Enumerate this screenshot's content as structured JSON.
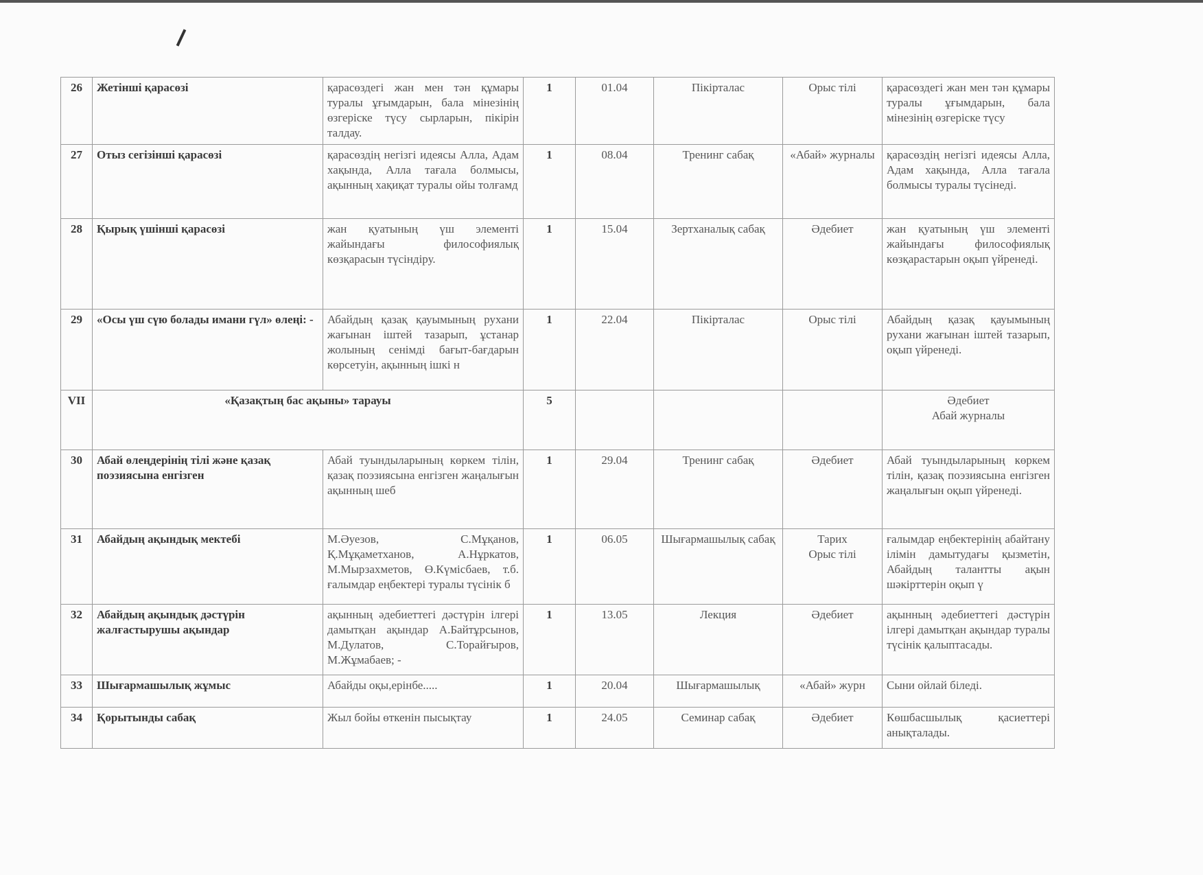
{
  "rows": [
    {
      "no": "26",
      "topic": "Жетінші қарасөзі",
      "goal": "қарасөздегі жан мен тән құмары туралы ұғымдарын, бала мінезінің өзгеріске түсу сырларын, пікірін талдау.",
      "hours": "1",
      "date": "01.04",
      "type": "Пікірталас",
      "link": "Орыс тілі",
      "result": "қарасөздегі жан мен тән құмары туралы ұғымдарын, бала мінезінің өзгеріске түсу"
    },
    {
      "no": "27",
      "topic": "Отыз сегізінші қарасөзі",
      "goal": "қарасөздің негізгі идеясы Алла, Адам хақында, Алла тағала болмысы, ақынның хақиқат туралы ойы толғамд",
      "hours": "1",
      "date": "08.04",
      "type": "Тренинг сабақ",
      "link": "«Абай» журналы",
      "result": "қарасөздің негізгі идеясы Алла, Адам хақында, Алла тағала болмысы туралы түсінеді."
    },
    {
      "no": "28",
      "topic": "Қырық үшінші қарасөзі",
      "goal": "жан қуатының үш элементі жайындағы философиялық көзқарасын түсіндіру.",
      "hours": "1",
      "date": "15.04",
      "type": "Зертханалық сабақ",
      "link": "Әдебиет",
      "result": "жан қуатының үш элементі жайындағы философиялық көзқарастарын оқып үйренеді."
    },
    {
      "no": "29",
      "topic": "«Осы үш сүю болады имани гүл» өлеңі: -",
      "goal": "Абайдың қазақ қауымының рухани жағынан іштей тазарып, ұстанар жолының сенімді бағыт-бағдарын көрсетуін, ақынның ішкі н",
      "hours": "1",
      "date": "22.04",
      "type": "Пікірталас",
      "link": "Орыс тілі",
      "result": "Абайдың қазақ қауымының рухани жағынан іштей тазарып, оқып үйренеді."
    }
  ],
  "section": {
    "no": "VII",
    "title": "«Қазақтың бас ақыны» тарауы",
    "hours": "5",
    "link": "Әдебиет\nАбай журналы"
  },
  "rows2": [
    {
      "no": "30",
      "topic": "Абай өлеңдерінің тілі және қазақ поэзиясына енгізген",
      "goal": "Абай туындыларының көркем тілін, қазақ поэзиясына енгізген жаңалығын ақынның шеб",
      "hours": "1",
      "date": "29.04",
      "type": "Тренинг сабақ",
      "link": "Әдебиет",
      "result": "Абай туындыларының көркем тілін, қазақ поэзиясына енгізген жаңалығын оқып үйренеді."
    },
    {
      "no": "31",
      "topic": "Абайдың ақындық мектебі",
      "goal": "М.Әуезов, С.Мұқанов, Қ.Мұқаметханов, А.Нұркатов, М.Мырзахметов, Ө.Күмісбаев, т.б. ғалымдар еңбектері туралы түсінік б",
      "hours": "1",
      "date": "06.05",
      "type": "Шығармашылық сабақ",
      "link": "Тарих\nОрыс тілі",
      "result": "ғалымдар еңбектерінің абайтану ілімін дамытудағы қызметін, Абайдың талантты ақын шәкірттерін оқып ү"
    },
    {
      "no": "32",
      "topic": "Абайдың ақындық дәстүрін жалғастырушы ақындар",
      "goal": "ақынның әдебиеттегі дәстүрін ілгері дамытқан ақындар А.Байтұрсынов, М.Дулатов, С.Торайғыров, М.Жұмабаев; -",
      "hours": "1",
      "date": "13.05",
      "type": "Лекция",
      "link": "Әдебиет",
      "result": "ақынның әдебиеттегі дәстүрін ілгері дамытқан ақындар туралы түсінік қалыптасады."
    },
    {
      "no": "33",
      "topic": "Шығармашылық жұмыс",
      "goal": "Абайды оқы,ерінбе.....",
      "hours": "1",
      "date": "20.04",
      "type": "Шығармашылық",
      "link": "«Абай» журн",
      "result": "Сыни ойлай біледі."
    },
    {
      "no": "34",
      "topic": "Қорытынды сабақ",
      "goal": "Жыл бойы өткенін пысықтау",
      "hours": "1",
      "date": "24.05",
      "type": "Семинар сабақ",
      "link": "Әдебиет",
      "result": "Көшбасшылық қасиеттері анықталады."
    }
  ]
}
